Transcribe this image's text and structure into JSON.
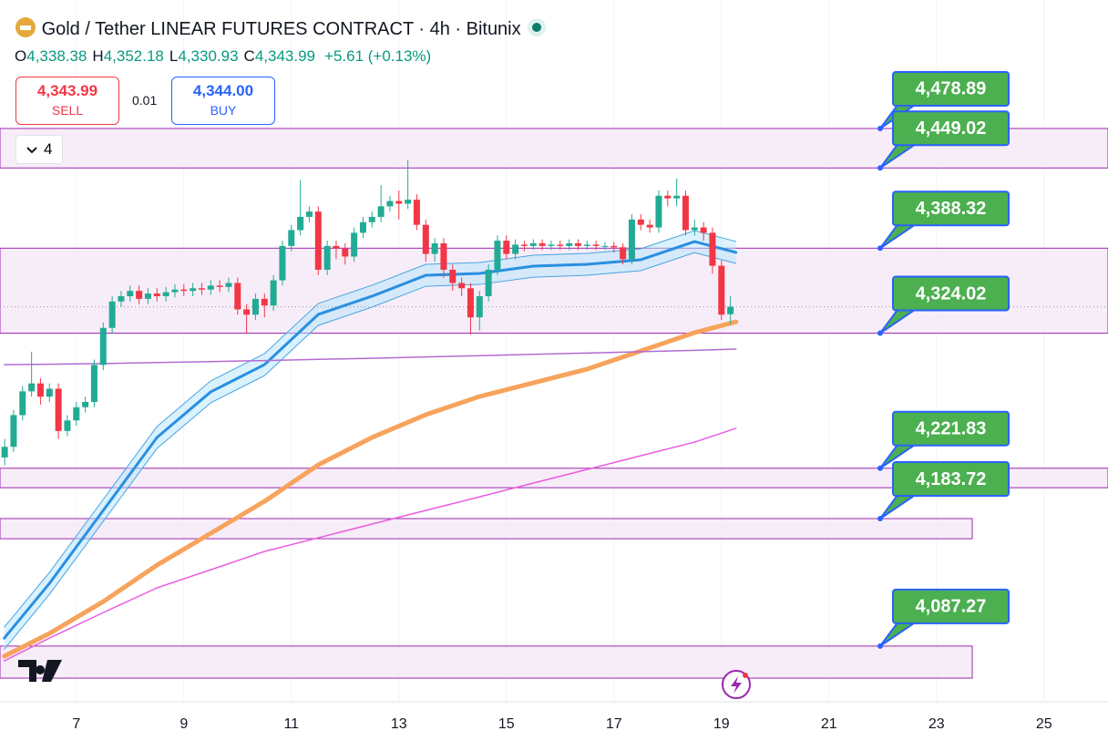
{
  "chart_data": {
    "type": "candlestick",
    "header": {
      "title": "Gold / Tether LINEAR FUTURES CONTRACT · 4h · Bitunix",
      "ohlc": [
        {
          "key": "O",
          "value": "4,338.38"
        },
        {
          "key": "H",
          "value": "4,352.18"
        },
        {
          "key": "L",
          "value": "4,330.93"
        },
        {
          "key": "C",
          "value": "4,343.99"
        }
      ],
      "change": "+5.61 (+0.13%)"
    },
    "trade": {
      "sell_price": "4,343.99",
      "sell": "SELL",
      "spread": "0.01",
      "buy_price": "4,344.00",
      "buy": "BUY"
    },
    "indicator_count": "4",
    "xlim": [
      5.58,
      26.19
    ],
    "xticks": [
      7,
      9,
      11,
      13,
      15,
      17,
      19,
      21,
      23,
      25
    ],
    "ylim": [
      4045.1,
      4576.1
    ],
    "up_color": "#22ab94",
    "down_color": "#f23645",
    "candles": {
      "x": [
        5.667,
        5.833,
        6,
        6.167,
        6.333,
        6.5,
        6.667,
        6.833,
        7,
        7.167,
        7.333,
        7.5,
        7.667,
        7.833,
        8,
        8.167,
        8.333,
        8.5,
        8.667,
        8.833,
        9,
        9.167,
        9.333,
        9.5,
        9.667,
        9.833,
        10,
        10.167,
        10.333,
        10.5,
        10.667,
        10.833,
        11,
        11.167,
        11.333,
        11.5,
        11.667,
        11.833,
        12,
        12.167,
        12.333,
        12.5,
        12.667,
        12.833,
        13,
        13.167,
        13.333,
        13.5,
        13.667,
        13.833,
        14,
        14.167,
        14.333,
        14.5,
        14.667,
        14.833,
        15,
        15.167,
        15.333,
        15.5,
        15.667,
        15.833,
        16,
        16.167,
        16.333,
        16.5,
        16.667,
        16.833,
        17,
        17.167,
        17.333,
        17.5,
        17.667,
        17.833,
        18,
        18.167,
        18.333,
        18.5,
        18.667,
        18.833,
        19,
        19.167
      ],
      "open": [
        4230,
        4238,
        4262,
        4280,
        4286,
        4276,
        4282,
        4250,
        4258,
        4268,
        4272,
        4300,
        4328,
        4348,
        4352,
        4356,
        4350,
        4354,
        4352,
        4355,
        4357,
        4356,
        4358,
        4357,
        4360,
        4359,
        4362,
        4342,
        4338,
        4350,
        4345,
        4364,
        4390,
        4402,
        4412,
        4416,
        4372,
        4390,
        4388,
        4382,
        4400,
        4408,
        4412,
        4420,
        4424,
        4422,
        4425,
        4406,
        4384,
        4392,
        4372,
        4362,
        4358,
        4336,
        4352,
        4372,
        4394,
        4384,
        4391,
        4390,
        4392,
        4390,
        4391,
        4390,
        4392,
        4390,
        4391,
        4390,
        4390,
        4389,
        4380,
        4410,
        4406,
        4404,
        4428,
        4426,
        4428,
        4402,
        4404,
        4400,
        4375,
        4338.38
      ],
      "high": [
        4244,
        4266,
        4284,
        4310,
        4290,
        4286,
        4286,
        4262,
        4272,
        4276,
        4304,
        4332,
        4352,
        4356,
        4360,
        4360,
        4358,
        4358,
        4359,
        4361,
        4361,
        4362,
        4362,
        4364,
        4364,
        4366,
        4366,
        4346,
        4354,
        4354,
        4368,
        4394,
        4406,
        4440,
        4420,
        4420,
        4394,
        4394,
        4392,
        4404,
        4412,
        4416,
        4436,
        4428,
        4432,
        4455,
        4429,
        4410,
        4396,
        4396,
        4376,
        4366,
        4362,
        4356,
        4376,
        4398,
        4398,
        4395,
        4394,
        4395,
        4395,
        4394,
        4394,
        4395,
        4395,
        4394,
        4394,
        4393,
        4393,
        4392,
        4414,
        4414,
        4410,
        4432,
        4432,
        4441,
        4432,
        4410,
        4408,
        4404,
        4379,
        4352.18
      ],
      "low": [
        4224,
        4234,
        4258,
        4276,
        4270,
        4272,
        4244,
        4246,
        4254,
        4264,
        4268,
        4296,
        4324,
        4344,
        4348,
        4346,
        4346,
        4348,
        4348,
        4351,
        4352,
        4352,
        4353,
        4353,
        4355,
        4355,
        4338,
        4324,
        4334,
        4336,
        4341,
        4360,
        4386,
        4398,
        4408,
        4368,
        4368,
        4380,
        4376,
        4378,
        4396,
        4404,
        4408,
        4416,
        4410,
        4418,
        4402,
        4378,
        4378,
        4366,
        4356,
        4352,
        4323,
        4326,
        4348,
        4368,
        4380,
        4380,
        4386,
        4387,
        4387,
        4387,
        4387,
        4387,
        4387,
        4387,
        4387,
        4387,
        4385,
        4376,
        4376,
        4402,
        4400,
        4400,
        4420,
        4420,
        4398,
        4398,
        4394,
        4369,
        4334,
        4330.93
      ],
      "close": [
        4238,
        4262,
        4280,
        4286,
        4276,
        4282,
        4250,
        4258,
        4268,
        4272,
        4300,
        4328,
        4348,
        4352,
        4356,
        4350,
        4354,
        4352,
        4355,
        4357,
        4356,
        4358,
        4357,
        4360,
        4359,
        4362,
        4342,
        4338,
        4350,
        4345,
        4364,
        4390,
        4402,
        4412,
        4416,
        4372,
        4390,
        4388,
        4382,
        4400,
        4408,
        4412,
        4420,
        4424,
        4422,
        4425,
        4406,
        4384,
        4392,
        4372,
        4362,
        4358,
        4336,
        4352,
        4372,
        4394,
        4384,
        4391,
        4390,
        4392,
        4390,
        4391,
        4390,
        4392,
        4390,
        4391,
        4390,
        4390,
        4389,
        4380,
        4410,
        4406,
        4404,
        4428,
        4426,
        4428,
        4402,
        4404,
        4400,
        4375,
        4338,
        4343.99
      ]
    },
    "line_x": [
      5.66,
      6.5,
      7.5,
      8.5,
      9.5,
      10.5,
      11.5,
      12.5,
      13.5,
      14.5,
      15.5,
      16.5,
      17.5,
      18.5,
      19.27
    ],
    "band": {
      "color": "#b3e5fc",
      "upper": [
        4101.6,
        4143,
        4198.2,
        4253.4,
        4287.9,
        4308.5,
        4346.5,
        4360.3,
        4376.1,
        4377.5,
        4383,
        4384.4,
        4387.9,
        4401.6,
        4393.4
      ],
      "lower": [
        4085,
        4126.4,
        4181.6,
        4236.8,
        4271.3,
        4291.9,
        4329.9,
        4343.7,
        4359.5,
        4360.9,
        4366.4,
        4367.8,
        4371.3,
        4385,
        4376.8
      ]
    },
    "lines": [
      {
        "color": "#f7a35c",
        "width": 5,
        "values": [
          4079.6,
          4096.8,
          4120.9,
          4148.5,
          4172.6,
          4196.8,
          4224.4,
          4245.1,
          4262.3,
          4276.1,
          4286.4,
          4296.8,
          4310.6,
          4324.4,
          4332.6
        ]
      },
      {
        "color": "#2a8fe0",
        "width": 3,
        "values": [
          4093.3,
          4134.7,
          4189.9,
          4245.1,
          4279.6,
          4300.2,
          4338.2,
          4352,
          4367.8,
          4369.2,
          4374.7,
          4376.1,
          4379.6,
          4393.3,
          4385.1
        ]
      },
      {
        "color": "#4aa3df",
        "width": 1,
        "values": [
          4101.6,
          4143,
          4198.2,
          4253.4,
          4287.9,
          4308.5,
          4346.5,
          4360.3,
          4376.1,
          4377.5,
          4383,
          4384.4,
          4387.9,
          4401.6,
          4393.4
        ]
      },
      {
        "color": "#4aa3df",
        "width": 1,
        "values": [
          4085,
          4126.4,
          4181.6,
          4236.8,
          4271.3,
          4291.9,
          4329.9,
          4343.7,
          4359.5,
          4360.9,
          4366.4,
          4367.8,
          4371.3,
          4385,
          4376.8
        ]
      },
      {
        "color": "#b36bd1",
        "width": 1.5,
        "values": [
          4300.2,
          4300.5,
          4301,
          4301.8,
          4302.5,
          4303.3,
          4304.2,
          4305,
          4306,
          4307,
          4308,
          4309,
          4310,
          4311,
          4312
        ]
      },
      {
        "color": "#ea5be0",
        "width": 1.5,
        "values": [
          4076.1,
          4093.3,
          4112.6,
          4131.3,
          4145,
          4158.9,
          4169.2,
          4179.6,
          4189.9,
          4200.2,
          4210.6,
          4220.9,
          4231.3,
          4241.6,
          4252
        ]
      }
    ],
    "zones": [
      {
        "top": 4478.89,
        "bottom": 4449.02,
        "xend": 26.19
      },
      {
        "top": 4388.32,
        "bottom": 4324.02,
        "xend": 26.19
      },
      {
        "top": 4221.83,
        "bottom": 4207.1,
        "xend": 26.19
      },
      {
        "top": 4183.72,
        "bottom": 4168.5,
        "xend": 23.665
      },
      {
        "top": 4087.27,
        "bottom": 4063,
        "xend": 23.665
      }
    ],
    "price_labels": {
      "values": [
        4478.89,
        4449.02,
        4388.32,
        4324.02,
        4221.83,
        4183.72,
        4087.27
      ],
      "value_labels": [
        "4,478.89",
        "4,449.02",
        "4,388.32",
        "4,324.02",
        "4,221.83",
        "4,183.72",
        "4,087.27"
      ]
    }
  }
}
